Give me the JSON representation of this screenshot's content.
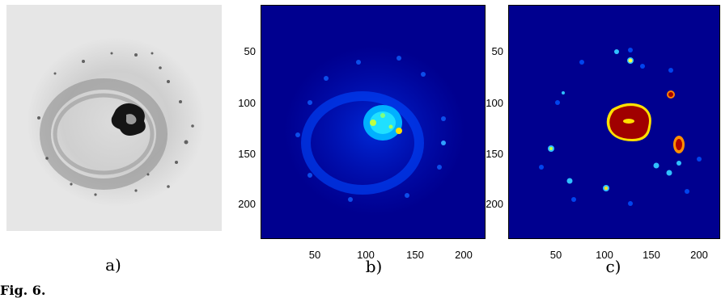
{
  "panels": [
    {
      "id": "a",
      "caption": "a)",
      "type": "grayscale-image",
      "description_icon": "fluorescence-cell-icon"
    },
    {
      "id": "b",
      "caption": "b)",
      "type": "heatmap",
      "y_ticks": [
        "50",
        "100",
        "150",
        "200"
      ],
      "x_ticks": [
        "50",
        "100",
        "150",
        "200"
      ]
    },
    {
      "id": "c",
      "caption": "c)",
      "type": "heatmap",
      "y_ticks": [
        "50",
        "100",
        "150",
        "200"
      ],
      "x_ticks": [
        "50",
        "100",
        "150",
        "200"
      ]
    }
  ],
  "figure_label": "Fig. 6.",
  "colors": {
    "heat_background": "#00008f",
    "heat_low": "#0030ff",
    "heat_mid": "#00e0ff",
    "heat_high": "#ffff00",
    "heat_max": "#a00000",
    "gray_background": "#e6e6e6"
  }
}
